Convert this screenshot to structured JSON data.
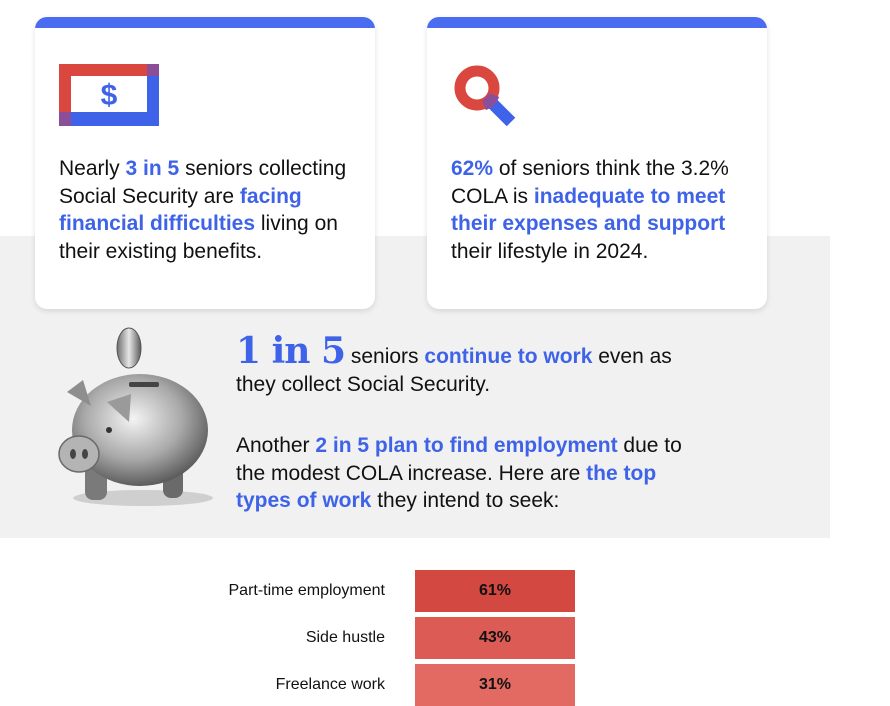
{
  "cards": [
    {
      "icon": "dollar-bill-icon",
      "text_parts": [
        {
          "t": "Nearly ",
          "hl": false
        },
        {
          "t": "3 in 5",
          "hl": true
        },
        {
          "t": " seniors collecting Social Security are ",
          "hl": false
        },
        {
          "t": "facing financial difficulties",
          "hl": true
        },
        {
          "t": " living on their existing benefits.",
          "hl": false
        }
      ]
    },
    {
      "icon": "magnifying-glass-icon",
      "text_parts": [
        {
          "t": "62%",
          "hl": true
        },
        {
          "t": " of seniors think the 3.2% COLA is ",
          "hl": false
        },
        {
          "t": "inadequate to meet their expenses and support",
          "hl": true
        },
        {
          "t": " their lifestyle in 2024.",
          "hl": false
        }
      ]
    }
  ],
  "middle": {
    "big_stat": "1 in 5",
    "line1_parts": [
      {
        "t": " seniors ",
        "hl": false
      },
      {
        "t": "continue to work",
        "hl": true
      },
      {
        "t": " even as they collect Social Security.",
        "hl": false
      }
    ],
    "line2_parts": [
      {
        "t": "Another ",
        "hl": false
      },
      {
        "t": "2 in 5 plan to find employment",
        "hl": true
      },
      {
        "t": " due to the modest COLA increase. Here are ",
        "hl": false
      },
      {
        "t": "the top types of work",
        "hl": true
      },
      {
        "t": " they intend to seek:",
        "hl": false
      }
    ]
  },
  "colors": {
    "accent_blue": "#3f63e8",
    "accent_red": "#d9473f"
  },
  "chart_data": {
    "type": "bar",
    "orientation": "horizontal",
    "categories": [
      "Part-time employment",
      "Side hustle",
      "Freelance work"
    ],
    "values": [
      61,
      43,
      31
    ],
    "value_labels": [
      "61%",
      "43%",
      "31%"
    ],
    "colors": [
      "#d34841",
      "#dc5c55",
      "#e26a63"
    ]
  }
}
